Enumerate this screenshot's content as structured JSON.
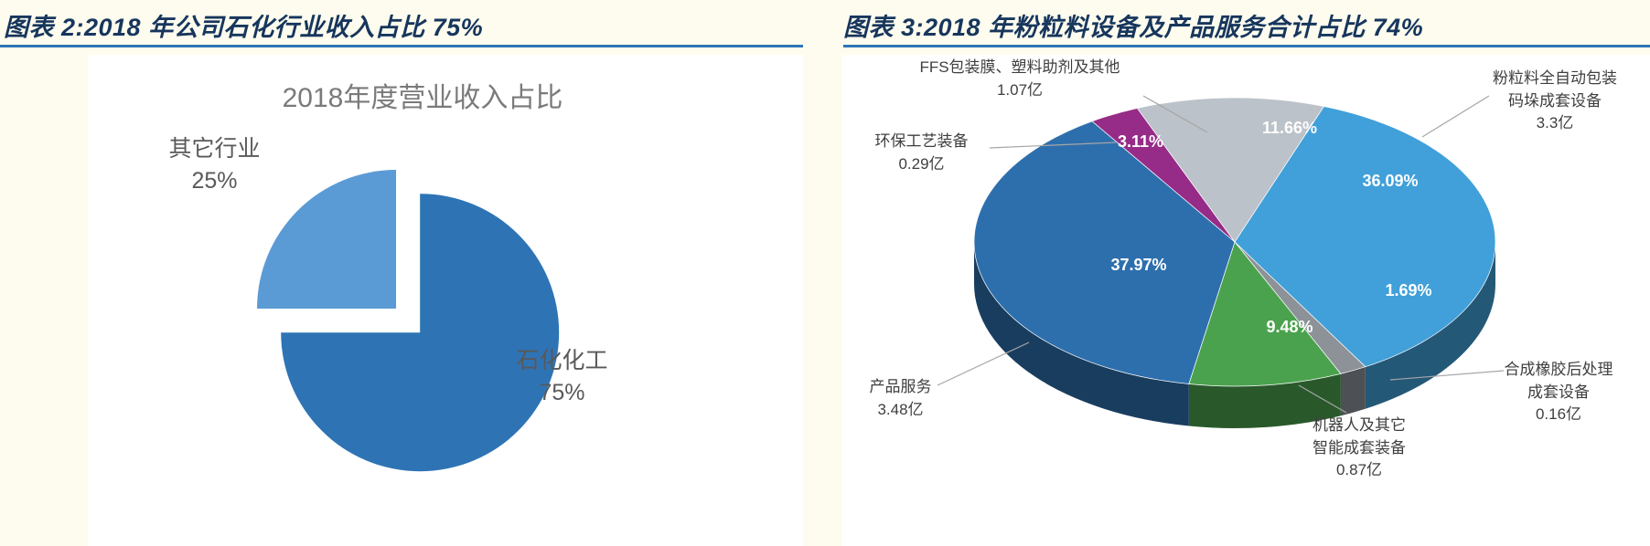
{
  "headers": {
    "left": "图表 2:2018 年公司石化行业收入占比 75%",
    "right": "图表 3:2018 年粉粒料设备及产品服务合计占比 74%"
  },
  "colors": {
    "header_text": "#17365D",
    "header_rule": "#2E75B6",
    "background": "#FDFCEE",
    "panel_background": "#FFFFFF"
  },
  "chart_data": [
    {
      "type": "pie",
      "style": "2d-exploded",
      "title": "2018年度营业收入占比",
      "legend_position": "none",
      "slices": [
        {
          "label": "其它行业",
          "pct": 25,
          "pct_label": "25%",
          "color": "#5B9BD5"
        },
        {
          "label": "石化化工",
          "pct": 75,
          "pct_label": "75%",
          "color": "#2E74B5"
        }
      ]
    },
    {
      "type": "pie",
      "style": "3d",
      "title": "",
      "legend_position": "none",
      "slices": [
        {
          "label": "粉粒料全自动包装码垛成套设备",
          "value_label": "3.3亿",
          "pct": 36.09,
          "pct_label": "36.09%",
          "color": "#41A0D9"
        },
        {
          "label": "合成橡胶后处理成套设备",
          "value_label": "0.16亿",
          "pct": 1.69,
          "pct_label": "1.69%",
          "color": "#8C9298"
        },
        {
          "label": "机器人及其它智能成套装备",
          "value_label": "0.87亿",
          "pct": 9.48,
          "pct_label": "9.48%",
          "color": "#4BA24E"
        },
        {
          "label": "产品服务",
          "value_label": "3.48亿",
          "pct": 37.97,
          "pct_label": "37.97%",
          "color": "#2D6FAD"
        },
        {
          "label": "环保工艺装备",
          "value_label": "0.29亿",
          "pct": 3.11,
          "pct_label": "3.11%",
          "color": "#962C87"
        },
        {
          "label": "FFS包装膜、塑料助剂及其他",
          "value_label": "1.07亿",
          "pct": 11.66,
          "pct_label": "11.66%",
          "color": "#BCC2C9"
        }
      ]
    }
  ]
}
